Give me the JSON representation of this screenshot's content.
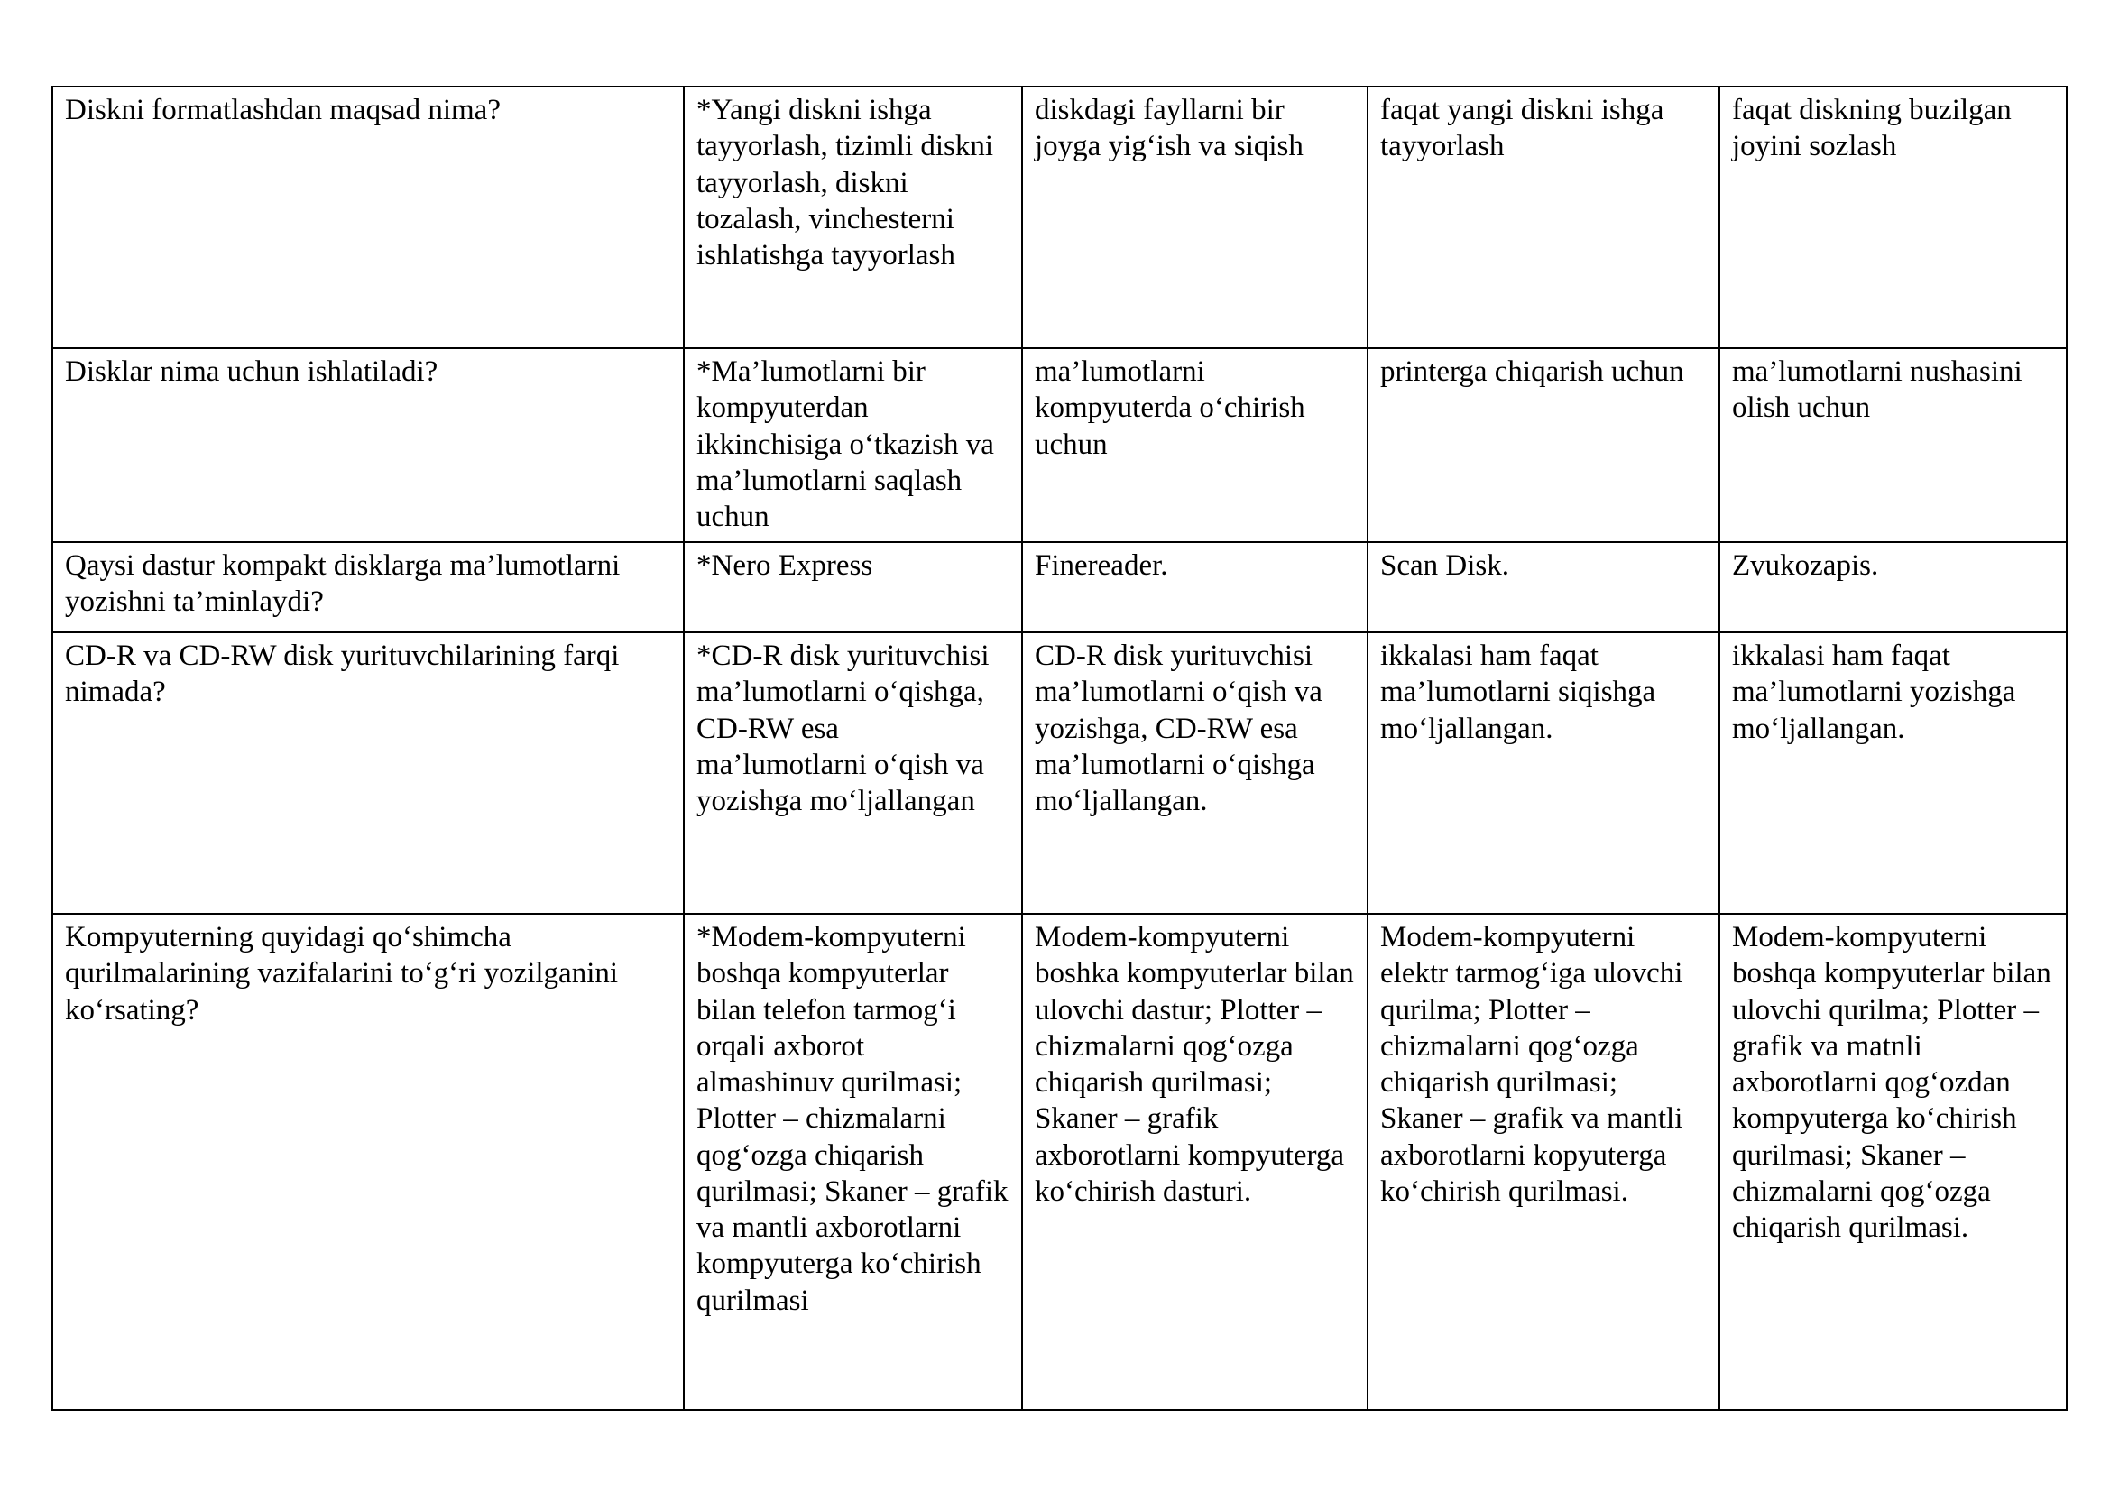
{
  "table": {
    "rows": [
      {
        "question": "Diskni formatlashdan maqsad nima?",
        "options": [
          "*Yangi diskni ishga tayyorlash, tizimli diskni tayyorlash, diskni tozalash, vinchesterni ishlatishga tayyorlash",
          "diskdagi fayllarni bir joyga yig‘ish va siqish",
          "faqat yangi diskni ishga tayyorlash",
          "faqat diskning buzilgan joyini sozlash"
        ]
      },
      {
        "question": "Disklar nima uchun ishlatiladi?",
        "options": [
          "*Ma’lumotlarni bir kompyuterdan ikkinchisiga o‘tkazish va ma’lumotlarni saqlash uchun",
          "ma’lumotlarni kompyuterda o‘chirish uchun",
          "printerga chiqarish uchun",
          "ma’lumotlarni nushasini olish uchun"
        ]
      },
      {
        "question": "Qaysi dastur kompakt disklarga ma’lumotlarni yozishni ta’minlaydi?",
        "options": [
          "*Nero Express",
          "Finereader.",
          "Scan Disk.",
          "Zvukozapis."
        ]
      },
      {
        "question": "CD-R va CD-RW disk yurituvchilarining farqi nimada?",
        "options": [
          "*CD-R disk yurituvchisi ma’lumotlarni o‘qishga, CD-RW esa ma’lumotlarni o‘qish va yozishga mo‘ljallangan",
          "CD-R disk yurituvchisi ma’lumotlarni o‘qish va yozishga, CD-RW esa ma’lumotlarni o‘qishga mo‘ljallangan.",
          "ikkalasi ham faqat ma’lumotlarni siqishga mo‘ljallangan.",
          "ikkalasi ham faqat ma’lumotlarni yozishga mo‘ljallangan."
        ]
      },
      {
        "question": "Kompyuterning quyidagi qo‘shimcha qurilmalarining vazifalarini to‘g‘ri yozilganini ko‘rsating?",
        "options": [
          "*Modem-kompyuterni boshqa kompyuterlar bilan telefon tarmog‘i orqali axborot almashinuv qurilmasi; Plotter – chizmalarni qog‘ozga chiqarish qurilmasi; Skaner – grafik va mantli axborotlarni kompyuterga ko‘chirish qurilmasi",
          "Modem-kompyuterni boshka kompyuterlar bilan ulovchi dastur; Plotter – chizmalarni qog‘ozga chiqarish qurilmasi; Skaner – grafik axborotlarni kompyuterga ko‘chirish dasturi.",
          "Modem-kompyuterni elektr tarmog‘iga ulovchi qurilma; Plotter – chizmalarni qog‘ozga chiqarish qurilmasi; Skaner – grafik va mantli axborotlarni kopyuterga ko‘chirish qurilmasi.",
          "Modem-kompyuterni boshqa kompyuterlar bilan ulovchi qurilma; Plotter – grafik va matnli axborotlarni qog‘ozdan kompyuterga ko‘chirish qurilmasi; Skaner –chizmalarni qog‘ozga chiqarish qurilmasi."
        ]
      }
    ]
  }
}
